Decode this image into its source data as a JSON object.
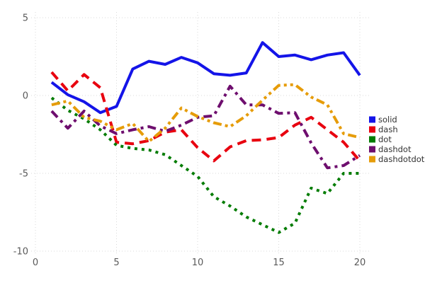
{
  "chart_data": {
    "type": "line",
    "title": "",
    "xlabel": "",
    "ylabel": "",
    "xlim": [
      0,
      20
    ],
    "ylim": [
      -10,
      5
    ],
    "x_ticks": [
      0,
      5,
      10,
      15,
      20
    ],
    "y_ticks": [
      5,
      0,
      -5,
      -10
    ],
    "grid": "dotted",
    "legend_position": "right",
    "x": [
      1,
      2,
      3,
      4,
      5,
      6,
      7,
      8,
      9,
      10,
      11,
      12,
      13,
      14,
      15,
      16,
      17,
      18,
      19,
      20
    ],
    "series": [
      {
        "name": "solid",
        "color": "#1414e8",
        "dash": "",
        "values": [
          0.85,
          0.05,
          -0.4,
          -1.1,
          -0.7,
          1.7,
          2.2,
          2.0,
          2.45,
          2.1,
          1.4,
          1.3,
          1.45,
          3.4,
          2.5,
          2.6,
          2.3,
          2.6,
          2.75,
          1.3
        ]
      },
      {
        "name": "dash",
        "color": "#e8000f",
        "dash": "13 8",
        "values": [
          1.5,
          0.3,
          1.35,
          0.5,
          -3.0,
          -3.1,
          -2.9,
          -2.35,
          -2.2,
          -3.35,
          -4.2,
          -3.3,
          -2.9,
          -2.85,
          -2.7,
          -1.9,
          -1.4,
          -2.2,
          -3.0,
          -4.2
        ]
      },
      {
        "name": "dot",
        "color": "#027c02",
        "dash": "4 6",
        "values": [
          -0.15,
          -0.95,
          -1.5,
          -2.2,
          -3.2,
          -3.4,
          -3.5,
          -3.8,
          -4.5,
          -5.2,
          -6.5,
          -7.1,
          -7.8,
          -8.3,
          -8.8,
          -8.2,
          -5.95,
          -6.3,
          -5.0,
          -5.0
        ]
      },
      {
        "name": "dashdot",
        "color": "#6e0e6e",
        "dash": "12 6 4 6",
        "values": [
          -1.0,
          -2.1,
          -1.0,
          -1.95,
          -2.45,
          -2.2,
          -2.0,
          -2.3,
          -1.9,
          -1.4,
          -1.3,
          0.6,
          -0.6,
          -0.6,
          -1.15,
          -1.1,
          -3.05,
          -4.65,
          -4.5,
          -3.85
        ]
      },
      {
        "name": "dashdotdot",
        "color": "#e69c09",
        "dash": "12 5 4 5 4 5",
        "values": [
          -0.6,
          -0.35,
          -1.4,
          -1.65,
          -2.2,
          -1.8,
          -2.95,
          -2.1,
          -0.8,
          -1.35,
          -1.75,
          -2.0,
          -1.3,
          -0.3,
          0.65,
          0.7,
          -0.1,
          -0.6,
          -2.45,
          -2.7
        ]
      }
    ],
    "legend": [
      "solid",
      "dash",
      "dot",
      "dashdot",
      "dashdotdot"
    ]
  },
  "style": {
    "background": "#ffffff",
    "grid_color": "#d9d9d9",
    "tick_label_color": "#5a5a5a",
    "legend_text_color": "#333333",
    "line_width": 4
  }
}
